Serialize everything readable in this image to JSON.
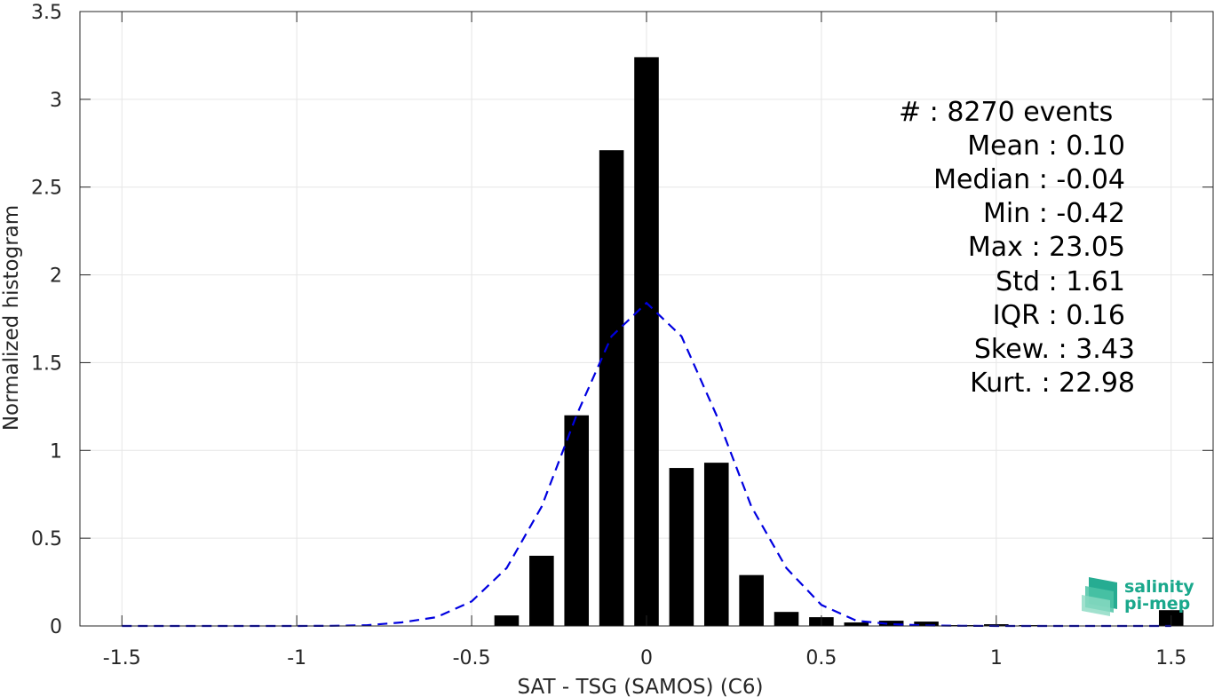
{
  "chart_data": {
    "type": "bar",
    "xlabel": "SAT - TSG (SAMOS) (C6)",
    "ylabel": "Normalized histogram",
    "xlim": [
      -1.62,
      1.62
    ],
    "ylim": [
      0,
      3.5
    ],
    "grid": true,
    "x_ticks": [
      -1.5,
      -1,
      -0.5,
      0,
      0.5,
      1,
      1.5
    ],
    "x_tick_labels": [
      "-1.5",
      "-1",
      "-0.5",
      "0",
      "0.5",
      "1",
      "1.5"
    ],
    "y_ticks": [
      0,
      0.5,
      1,
      1.5,
      2,
      2.5,
      3,
      3.5
    ],
    "y_tick_labels": [
      "0",
      "0.5",
      "1",
      "1.5",
      "2",
      "2.5",
      "3",
      "3.5"
    ],
    "bar_width": 0.07,
    "bar_color": "#000000",
    "bars": {
      "x": [
        -0.4,
        -0.3,
        -0.2,
        -0.1,
        0.0,
        0.1,
        0.2,
        0.3,
        0.4,
        0.5,
        0.6,
        0.7,
        0.8,
        0.9,
        1.0,
        1.1,
        1.2,
        1.3,
        1.4,
        1.5
      ],
      "values": [
        0.06,
        0.4,
        1.2,
        2.71,
        3.24,
        0.9,
        0.93,
        0.29,
        0.08,
        0.05,
        0.02,
        0.03,
        0.025,
        0.005,
        0.01,
        0.005,
        0.002,
        0.002,
        0.002,
        0.09
      ]
    },
    "fit_curve": {
      "color": "#0000e0",
      "style": "dashed",
      "x": [
        -1.5,
        -1.4,
        -1.3,
        -1.2,
        -1.1,
        -1.0,
        -0.9,
        -0.8,
        -0.7,
        -0.6,
        -0.5,
        -0.4,
        -0.3,
        -0.2,
        -0.1,
        0.0,
        0.1,
        0.2,
        0.3,
        0.4,
        0.5,
        0.6,
        0.7,
        0.8,
        0.9,
        1.0,
        1.1,
        1.2,
        1.3,
        1.4,
        1.5
      ],
      "y": [
        0,
        0,
        0,
        0,
        0,
        0,
        0.001,
        0.004,
        0.02,
        0.05,
        0.14,
        0.33,
        0.68,
        1.2,
        1.65,
        1.84,
        1.65,
        1.2,
        0.68,
        0.33,
        0.12,
        0.03,
        0.01,
        0.003,
        0.001,
        0,
        0,
        0,
        0,
        0,
        0
      ]
    },
    "annotation_lines": [
      "#  : 8270 events",
      "Mean : 0.10",
      "Median : -0.04",
      "Min : -0.42",
      "Max : 23.05",
      "Std : 1.61",
      "IQR : 0.16",
      "Skew. : 3.43",
      "Kurt. : 22.98"
    ]
  },
  "logo": {
    "line1": "salinity",
    "line2": "pi-mep",
    "color": "#1aa88c"
  }
}
